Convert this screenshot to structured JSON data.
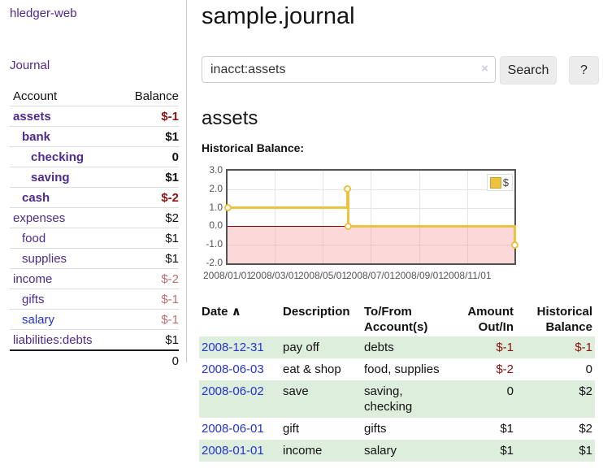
{
  "colors": {
    "purple": "#4d2b8e",
    "linkblue": "#2433cf",
    "negstrong": "#8f1010",
    "negsoft": "#bd6e6e",
    "rowgreen": "#ddeedd",
    "gold": "#EDC240",
    "goldborder": "#c7a02e",
    "zeroline": "#8b0000",
    "gridline": "#e5e5e5",
    "chartborder": "#545454",
    "axistext": "#545454",
    "btnbg": "#ececec",
    "inputborder": "#cccccc",
    "divider": "#cccccc",
    "clearicon": "#cfc8e6"
  },
  "app": {
    "brand": "hledger-web",
    "nav_journal": "Journal"
  },
  "sidebar": {
    "header": {
      "account": "Account",
      "balance": "Balance"
    },
    "accounts": [
      {
        "name": "assets",
        "balance": "$-1"
      },
      {
        "name": "bank",
        "balance": "$1"
      },
      {
        "name": "checking",
        "balance": "0"
      },
      {
        "name": "saving",
        "balance": "$1"
      },
      {
        "name": "cash",
        "balance": "$-2"
      },
      {
        "name": "expenses",
        "balance": "$2"
      },
      {
        "name": "food",
        "balance": "$1"
      },
      {
        "name": "supplies",
        "balance": "$1"
      },
      {
        "name": "income",
        "balance": "$-2"
      },
      {
        "name": "gifts",
        "balance": "$-1"
      },
      {
        "name": "salary",
        "balance": "$-1"
      },
      {
        "name": "liabilities:debts",
        "balance": "$1"
      }
    ],
    "total": "0"
  },
  "main": {
    "title": "sample.journal",
    "search": {
      "value": "inacct:assets",
      "clear_icon": "×",
      "search_button": "Search",
      "help_button": "?"
    },
    "account_heading": "assets",
    "chart_label": "Historical Balance:",
    "register": {
      "headers": {
        "date": "Date",
        "sort_indicator": "∧",
        "description": "Description",
        "tofrom_line1": "To/From",
        "tofrom_line2": "Account(s)",
        "amount_line1": "Amount",
        "amount_line2": "Out/In",
        "balance_line1": "Historical",
        "balance_line2": "Balance"
      },
      "rows": [
        {
          "date": "2008-12-31",
          "description": "pay off",
          "accounts": "debts",
          "amount": "$-1",
          "balance": "$-1"
        },
        {
          "date": "2008-06-03",
          "description": "eat & shop",
          "accounts": "food, supplies",
          "amount": "$-2",
          "balance": "0"
        },
        {
          "date": "2008-06-02",
          "description": "save",
          "accounts": "saving,\nchecking",
          "amount": "0",
          "balance": "$2"
        },
        {
          "date": "2008-06-01",
          "description": "gift",
          "accounts": "gifts",
          "amount": "$1",
          "balance": "$2"
        },
        {
          "date": "2008-01-01",
          "description": "income",
          "accounts": "salary",
          "amount": "$1",
          "balance": "$1"
        }
      ]
    }
  },
  "chart_data": {
    "type": "line",
    "style": "step-after",
    "title": "Historical Balance",
    "legend": {
      "label": "$",
      "position": "top-right"
    },
    "xlim": [
      "2008-01-01",
      "2008-12-31"
    ],
    "ylim": [
      -2,
      3
    ],
    "yticks": [
      3,
      2,
      1,
      0,
      -1,
      -2
    ],
    "xticks": [
      "2008/01/01",
      "2008/03/01",
      "2008/05/01",
      "2008/07/01",
      "2008/09/01",
      "2008/11/01"
    ],
    "grid": true,
    "negative_region_shaded": true,
    "series": [
      {
        "name": "$",
        "points": [
          [
            "2008-01-01",
            1
          ],
          [
            "2008-06-01",
            2
          ],
          [
            "2008-06-02",
            2
          ],
          [
            "2008-06-03",
            0
          ],
          [
            "2008-12-31",
            -1
          ]
        ]
      }
    ]
  }
}
